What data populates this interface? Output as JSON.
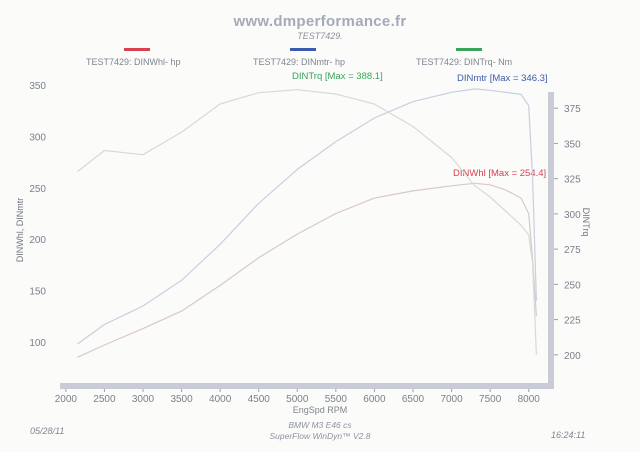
{
  "header": {
    "site": "www.dmperformance.fr",
    "test_label": "TEST7429."
  },
  "legend": [
    {
      "label": "TEST7429: DINWhl-  hp",
      "color": "#d9404e"
    },
    {
      "label": "TEST7429: DINmtr-  hp",
      "color": "#3b5bb0"
    },
    {
      "label": "TEST7429: DINTrq-  Nm",
      "color": "#3aa35a"
    }
  ],
  "annotations": {
    "trq_max": "DINTrq [Max = 388.1]",
    "mtr_max": "DINmtr [Max = 346.3]",
    "whl_max": "DINWhl [Max = 254.4]"
  },
  "footer": {
    "car": "BMW M3 E46 cs",
    "software": "SuperFlow WinDyn™ V2.8",
    "date": "05/28/11",
    "time": "16:24:11"
  },
  "chart_data": {
    "type": "line",
    "xlabel": "EngSpd  RPM",
    "ylabel_left": "DINWhl, DINmtr",
    "ylabel_right": "DINTrq",
    "xlim": [
      1950,
      8250
    ],
    "ylim_left": [
      60,
      355
    ],
    "ylim_right": [
      180,
      395
    ],
    "x_ticks": [
      2000,
      2500,
      3000,
      3500,
      4000,
      4500,
      5000,
      5500,
      6000,
      6500,
      7000,
      7500,
      8000
    ],
    "y_ticks_left": [
      100,
      150,
      200,
      250,
      300,
      350
    ],
    "y_ticks_right": [
      200,
      225,
      250,
      275,
      300,
      325,
      350,
      375
    ],
    "grid": false,
    "series": [
      {
        "name": "TEST7429: DINWhl-  hp",
        "axis": "left",
        "color": "#d9c8cc",
        "x": [
          2150,
          2500,
          3000,
          3500,
          4000,
          4500,
          5000,
          5500,
          6000,
          6500,
          7000,
          7300,
          7500,
          7700,
          7900,
          8000,
          8050,
          8100
        ],
        "y": [
          85,
          97,
          113,
          130,
          155,
          182,
          205,
          225,
          240,
          247,
          252,
          254.4,
          253,
          248,
          240,
          225,
          180,
          125
        ]
      },
      {
        "name": "TEST7429: DINmtr-  hp",
        "axis": "left",
        "color": "#c9cfe0",
        "x": [
          2150,
          2500,
          3000,
          3500,
          4000,
          4500,
          5000,
          5500,
          6000,
          6500,
          7000,
          7300,
          7500,
          7700,
          7900,
          8000,
          8050,
          8100
        ],
        "y": [
          98,
          117,
          135,
          160,
          195,
          235,
          268,
          295,
          318,
          334,
          343,
          346.3,
          345,
          343,
          341,
          330,
          260,
          140
        ]
      },
      {
        "name": "TEST7429: DINTrq-  Nm",
        "axis": "right",
        "color": "#d3ddd3",
        "x": [
          2150,
          2500,
          3000,
          3500,
          4000,
          4500,
          5000,
          5500,
          6000,
          6500,
          7000,
          7300,
          7500,
          7700,
          7900,
          8000,
          8050,
          8100
        ],
        "y": [
          330,
          345,
          342,
          358,
          378,
          386,
          388.1,
          385,
          378,
          362,
          340,
          320,
          312,
          302,
          292,
          285,
          265,
          200
        ]
      }
    ]
  }
}
